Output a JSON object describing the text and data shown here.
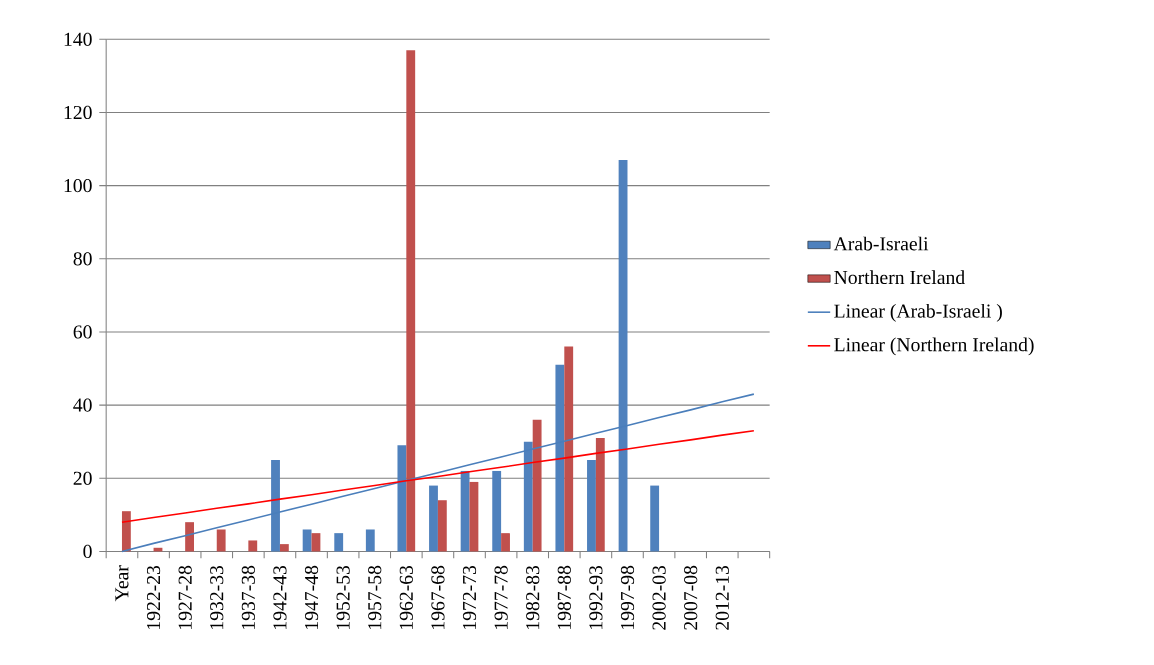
{
  "chart_data": {
    "type": "bar",
    "categories": [
      "Year",
      "1922-23",
      "1927-28",
      "1932-33",
      "1937-38",
      "1942-43",
      "1947-48",
      "1952-53",
      "1957-58",
      "1962-63",
      "1967-68",
      "1972-73",
      "1977-78",
      "1982-83",
      "1987-88",
      "1992-93",
      "1997-98",
      "2002-03",
      "2007-08",
      "2012-13",
      null
    ],
    "series": [
      {
        "name": "Arab-Israeli",
        "color": "#4f81bd",
        "values": [
          null,
          null,
          null,
          null,
          null,
          25,
          6,
          5,
          6,
          29,
          18,
          22,
          22,
          30,
          51,
          25,
          107,
          18,
          null,
          null,
          null
        ]
      },
      {
        "name": "Northern Ireland",
        "color": "#c0504d",
        "values": [
          11,
          1,
          8,
          6,
          3,
          2,
          5,
          null,
          null,
          137,
          14,
          19,
          5,
          36,
          56,
          31,
          null,
          null,
          null,
          null,
          null
        ]
      },
      {
        "name": "Linear (Arab-Israeli )",
        "type": "line",
        "color": "#4a7ebb",
        "values": [
          0,
          2.2,
          4.3,
          6.5,
          8.6,
          10.8,
          12.9,
          15.1,
          17.2,
          19.4,
          21.5,
          23.7,
          25.8,
          28,
          30.1,
          32.3,
          34.4,
          36.6,
          38.7,
          40.9,
          43
        ]
      },
      {
        "name": "Linear (Northern Ireland)",
        "type": "line",
        "color": "#ff0000",
        "values": [
          8,
          9.3,
          10.5,
          11.8,
          13,
          14.3,
          15.5,
          16.8,
          18,
          19.3,
          20.5,
          21.8,
          23,
          24.3,
          25.5,
          26.8,
          28,
          29.3,
          30.5,
          31.8,
          33
        ]
      }
    ],
    "ylim": [
      0,
      140
    ],
    "yticks": [
      0,
      20,
      40,
      60,
      80,
      100,
      120,
      140
    ],
    "grid": "y",
    "legend": "right"
  }
}
